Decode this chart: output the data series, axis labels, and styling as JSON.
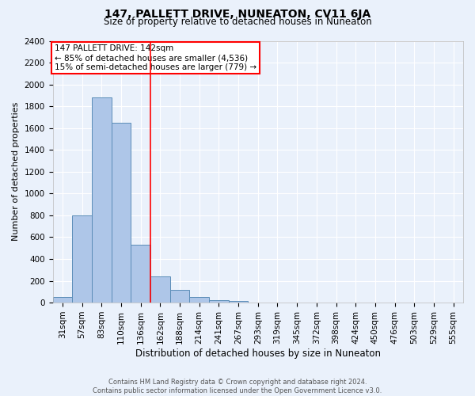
{
  "title": "147, PALLETT DRIVE, NUNEATON, CV11 6JA",
  "subtitle": "Size of property relative to detached houses in Nuneaton",
  "xlabel": "Distribution of detached houses by size in Nuneaton",
  "ylabel": "Number of detached properties",
  "footer_line1": "Contains HM Land Registry data © Crown copyright and database right 2024.",
  "footer_line2": "Contains public sector information licensed under the Open Government Licence v3.0.",
  "categories": [
    "31sqm",
    "57sqm",
    "83sqm",
    "110sqm",
    "136sqm",
    "162sqm",
    "188sqm",
    "214sqm",
    "241sqm",
    "267sqm",
    "293sqm",
    "319sqm",
    "345sqm",
    "372sqm",
    "398sqm",
    "424sqm",
    "450sqm",
    "476sqm",
    "503sqm",
    "529sqm",
    "555sqm"
  ],
  "bar_heights": [
    55,
    800,
    1880,
    1650,
    530,
    240,
    115,
    55,
    25,
    15,
    0,
    0,
    0,
    0,
    0,
    0,
    0,
    0,
    0,
    0,
    0
  ],
  "bar_color": "#aec6e8",
  "bar_edge_color": "#5b8db8",
  "red_line_x": 4.5,
  "ylim": [
    0,
    2400
  ],
  "yticks": [
    0,
    200,
    400,
    600,
    800,
    1000,
    1200,
    1400,
    1600,
    1800,
    2000,
    2200,
    2400
  ],
  "annotation_text": "147 PALLETT DRIVE: 142sqm\n← 85% of detached houses are smaller (4,536)\n15% of semi-detached houses are larger (779) →",
  "annotation_box_color": "white",
  "annotation_box_edge": "red",
  "background_color": "#eaf1fb",
  "grid_color": "white",
  "title_fontsize": 10,
  "subtitle_fontsize": 8.5,
  "ylabel_fontsize": 8,
  "xlabel_fontsize": 8.5,
  "tick_fontsize": 7.5,
  "footer_fontsize": 6,
  "annotation_fontsize": 7.5
}
